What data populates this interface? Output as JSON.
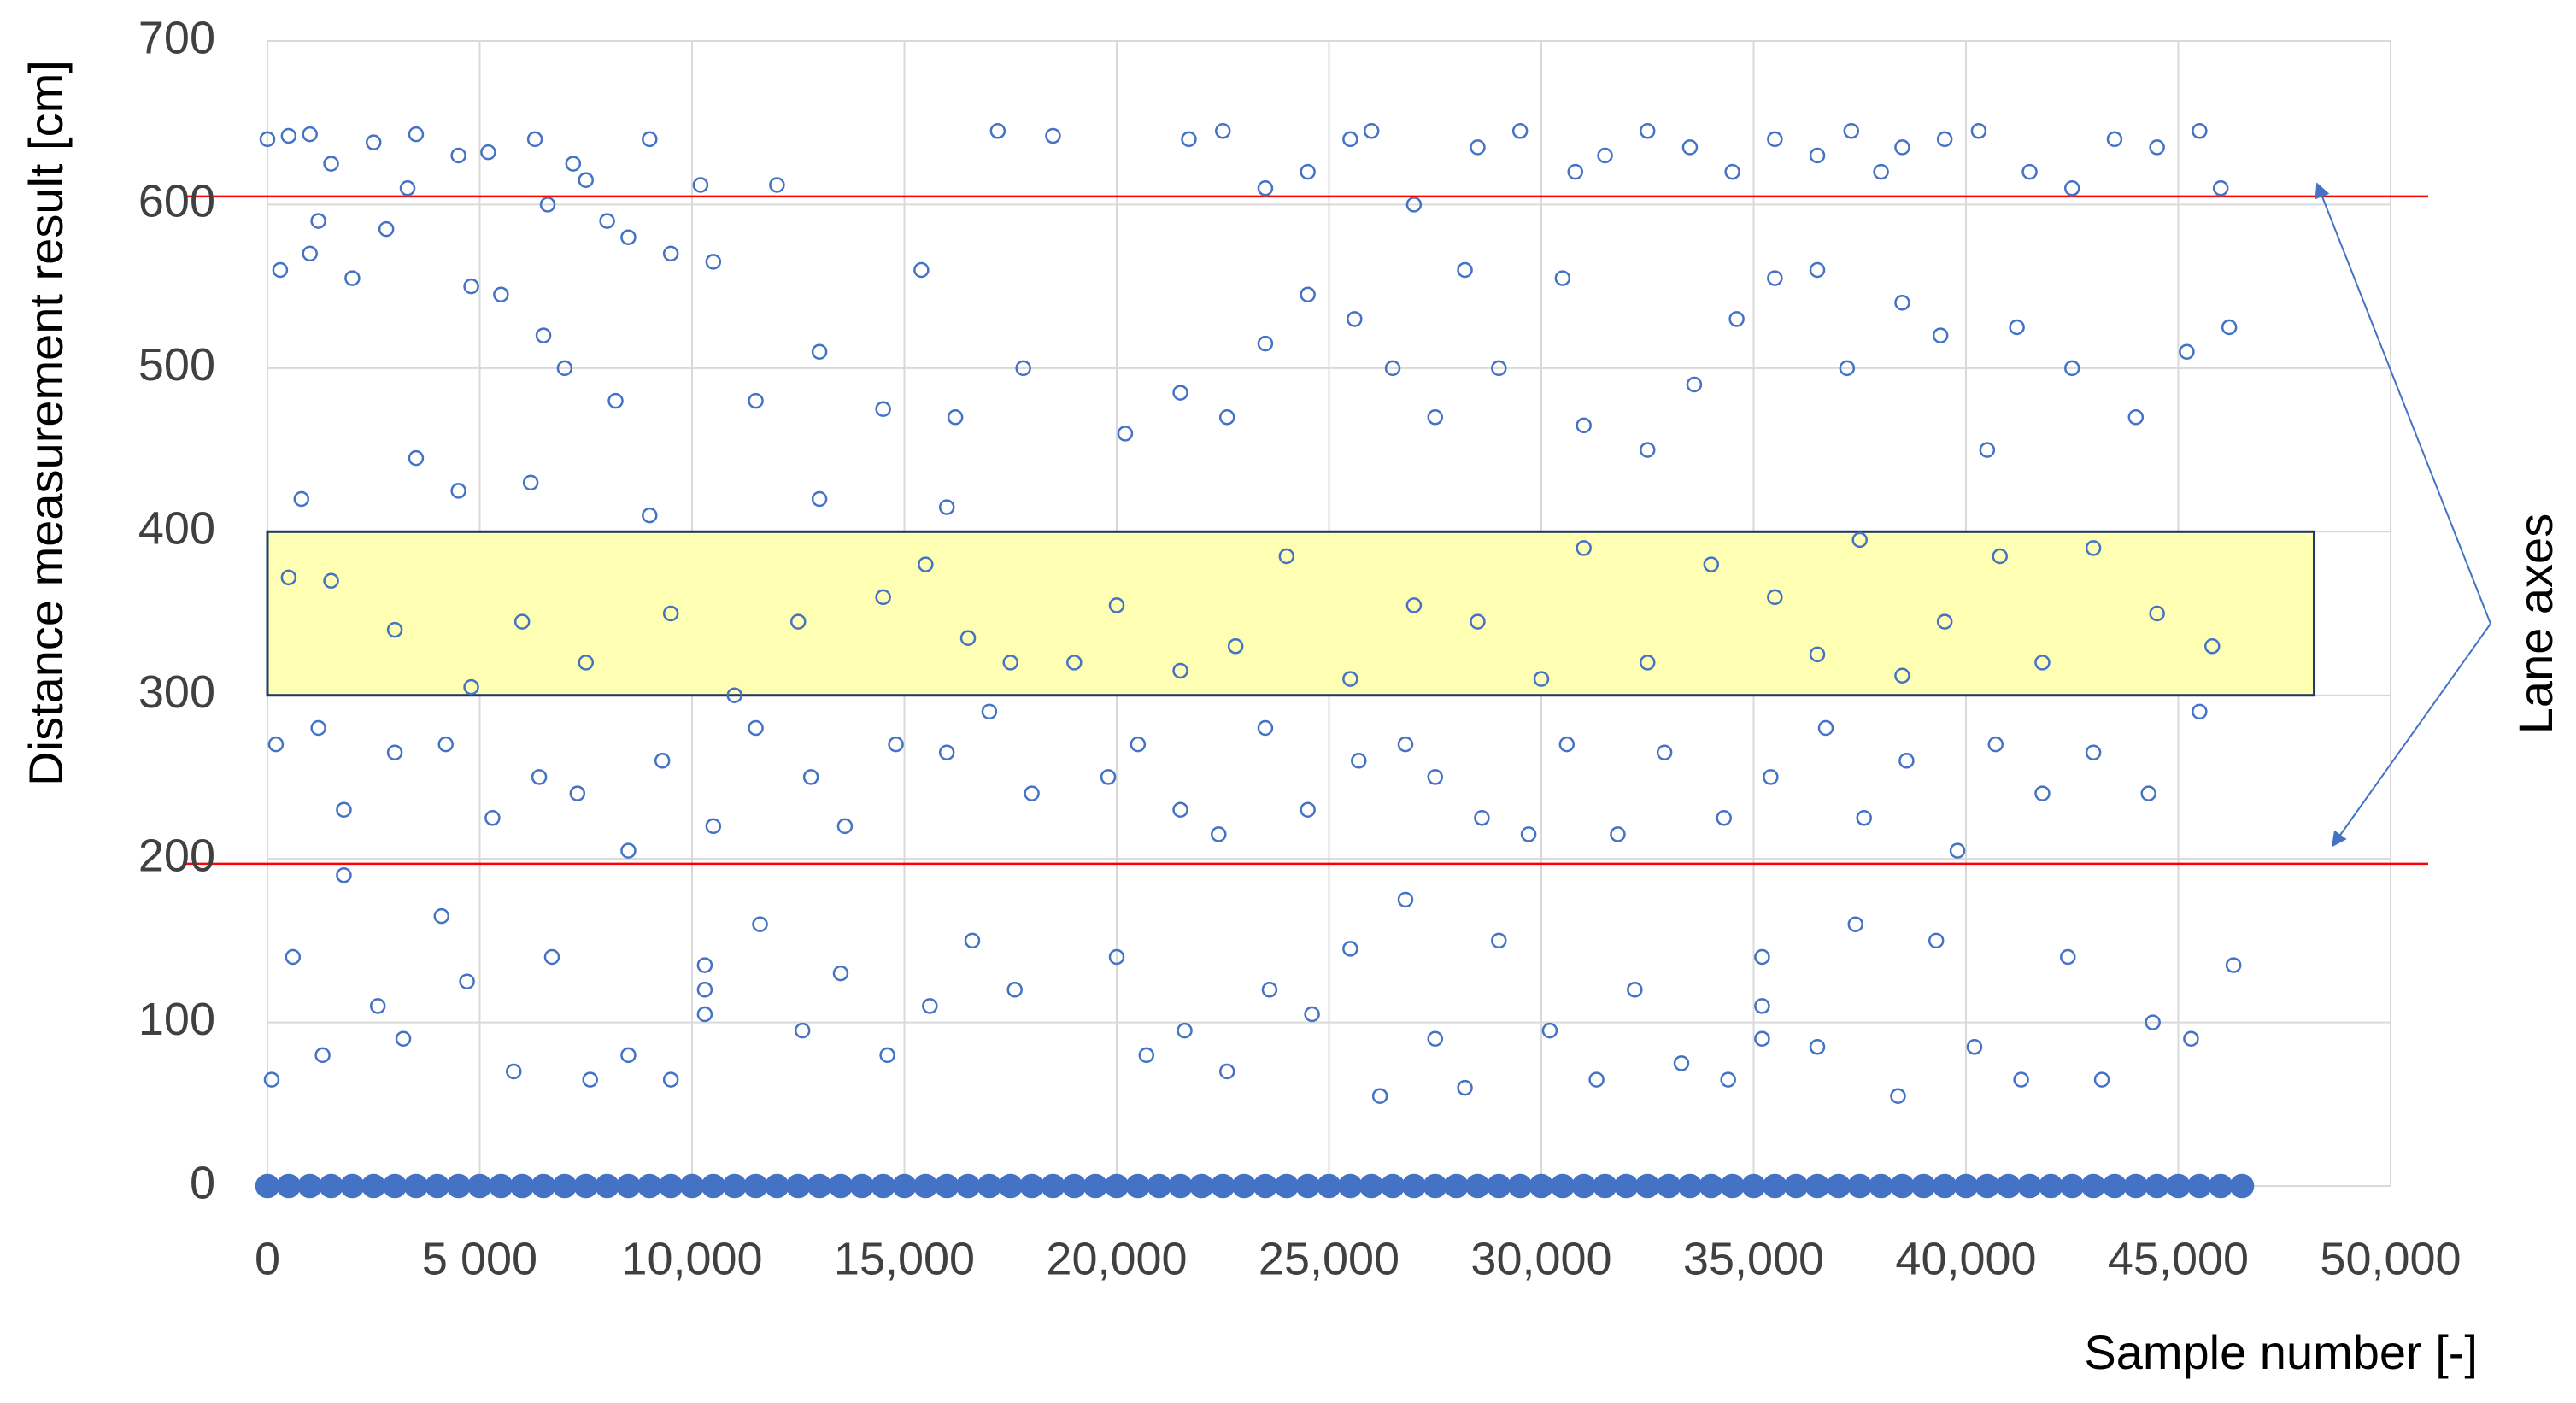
{
  "chart_data": {
    "type": "scatter",
    "x_label": "Sample number [-]",
    "y_label": "Distance measurement result [cm]",
    "xlim": [
      0,
      50000
    ],
    "ylim": [
      0,
      700
    ],
    "xticks": [
      0,
      {
        "value": 5000,
        "label": "5 000"
      },
      {
        "value": 10000,
        "label": "10,000"
      },
      {
        "value": 15000,
        "label": "15,000"
      },
      {
        "value": 20000,
        "label": "20,000"
      },
      {
        "value": 25000,
        "label": "25,000"
      },
      {
        "value": 30000,
        "label": "30,000"
      },
      {
        "value": 35000,
        "label": "35,000"
      },
      {
        "value": 40000,
        "label": "40,000"
      },
      {
        "value": 45000,
        "label": "45,000"
      },
      {
        "value": 50000,
        "label": "50,000"
      }
    ],
    "yticks": [
      0,
      100,
      200,
      300,
      400,
      500,
      600,
      700
    ],
    "grid": true,
    "reference_lines": {
      "color": "#ff0000",
      "values": [
        605,
        197
      ]
    },
    "highlight": {
      "xlim": [
        0,
        48200
      ],
      "ylim": [
        300,
        400
      ],
      "color": "#ffffb3",
      "edge_color": "#1f3864"
    },
    "annotation": "Lane axes",
    "series": [
      {
        "color": "#4472c4",
        "filled": false,
        "x": [
          0,
          500,
          1000,
          1500,
          2500,
          3500,
          4500,
          5200,
          6300,
          7200,
          7500,
          8000,
          9000,
          10200,
          12000,
          17200,
          18500,
          21700,
          22500,
          23500,
          24500,
          25500,
          26000,
          27000,
          28500,
          29500,
          30800,
          31500,
          32500,
          33500,
          34500,
          35500,
          36500,
          37300,
          38000,
          38500,
          39500,
          40300,
          41500,
          42500,
          43500,
          44500,
          45500,
          46000,
          1200,
          2800,
          3300,
          6600,
          8500,
          300,
          1000,
          2000,
          4800,
          5500,
          6500,
          7000,
          8200,
          9500,
          10500,
          11500,
          13000,
          15400,
          16200,
          17800,
          20200,
          21500,
          22600,
          23500,
          24500,
          25600,
          26500,
          27500,
          28200,
          29000,
          30500,
          31000,
          32500,
          33600,
          34600,
          35500,
          36500,
          37200,
          38500,
          39400,
          40500,
          41200,
          42500,
          44000,
          45200,
          46200,
          800,
          3500,
          4500,
          6200,
          9000,
          13000,
          14500,
          16000,
          500,
          1500,
          3000,
          4800,
          6000,
          7500,
          9500,
          11000,
          12500,
          14500,
          15500,
          16500,
          17500,
          19000,
          20000,
          21500,
          22800,
          24000,
          25500,
          27000,
          28500,
          30000,
          31000,
          32500,
          34000,
          35500,
          36500,
          37500,
          38500,
          39500,
          40800,
          41800,
          43000,
          44500,
          45800,
          200,
          1200,
          1800,
          3000,
          4200,
          5300,
          6400,
          7300,
          8500,
          9300,
          10500,
          11500,
          12800,
          13600,
          14800,
          16000,
          17000,
          18000,
          19800,
          20500,
          21500,
          22400,
          23500,
          24500,
          25700,
          26800,
          27500,
          28600,
          29700,
          30600,
          31800,
          32900,
          34300,
          35400,
          36700,
          37600,
          38600,
          39800,
          40700,
          41800,
          43000,
          44300,
          45500,
          100,
          600,
          1300,
          1800,
          2600,
          3200,
          4100,
          4700,
          5800,
          6700,
          7600,
          8500,
          9500,
          10300,
          10300,
          10300,
          11600,
          12600,
          13500,
          14600,
          15600,
          16600,
          17600,
          20000,
          20700,
          21600,
          22600,
          23600,
          24600,
          25500,
          26200,
          26800,
          27500,
          28200,
          29000,
          30200,
          31300,
          32200,
          33300,
          34400,
          35200,
          35200,
          35200,
          36500,
          37400,
          38400,
          39300,
          40200,
          41300,
          42400,
          43200,
          44400,
          45300,
          46300
        ],
        "values": [
          640,
          642,
          643,
          625,
          638,
          643,
          630,
          632,
          640,
          625,
          615,
          590,
          640,
          612,
          612,
          645,
          642,
          640,
          645,
          610,
          620,
          640,
          645,
          600,
          635,
          645,
          620,
          630,
          645,
          635,
          620,
          640,
          630,
          645,
          620,
          635,
          640,
          645,
          620,
          610,
          640,
          635,
          645,
          610,
          590,
          585,
          610,
          600,
          580,
          560,
          570,
          555,
          550,
          545,
          520,
          500,
          480,
          570,
          565,
          480,
          510,
          560,
          470,
          500,
          460,
          485,
          470,
          515,
          545,
          530,
          500,
          470,
          560,
          500,
          555,
          465,
          450,
          490,
          530,
          555,
          560,
          500,
          540,
          520,
          450,
          525,
          500,
          470,
          510,
          525,
          420,
          445,
          425,
          430,
          410,
          420,
          475,
          415,
          372,
          370,
          340,
          305,
          345,
          320,
          350,
          300,
          345,
          360,
          380,
          335,
          320,
          320,
          355,
          315,
          330,
          385,
          310,
          355,
          345,
          310,
          390,
          320,
          380,
          360,
          325,
          395,
          312,
          345,
          385,
          320,
          390,
          350,
          330,
          270,
          280,
          230,
          265,
          270,
          225,
          250,
          240,
          205,
          260,
          220,
          280,
          250,
          220,
          270,
          265,
          290,
          240,
          250,
          270,
          230,
          215,
          280,
          230,
          260,
          270,
          250,
          225,
          215,
          270,
          215,
          265,
          225,
          250,
          280,
          225,
          260,
          205,
          270,
          240,
          265,
          240,
          290,
          65,
          140,
          80,
          190,
          110,
          90,
          165,
          125,
          70,
          140,
          65,
          80,
          65,
          120,
          105,
          135,
          160,
          95,
          130,
          80,
          110,
          150,
          120,
          140,
          80,
          95,
          70,
          120,
          105,
          145,
          55,
          175,
          90,
          60,
          150,
          95,
          65,
          120,
          75,
          65,
          110,
          140,
          90,
          85,
          160,
          55,
          150,
          85,
          65,
          140,
          65,
          100,
          90,
          135
        ]
      },
      {
        "color": "#4472c4",
        "filled": true,
        "x": [
          0,
          500,
          1000,
          1500,
          2000,
          2500,
          3000,
          3500,
          4000,
          4500,
          5000,
          5500,
          6000,
          6500,
          7000,
          7500,
          8000,
          8500,
          9000,
          9500,
          10000,
          10500,
          11000,
          11500,
          12000,
          12500,
          13000,
          13500,
          14000,
          14500,
          15000,
          15500,
          16000,
          16500,
          17000,
          17500,
          18000,
          18500,
          19000,
          19500,
          20000,
          20500,
          21000,
          21500,
          22000,
          22500,
          23000,
          23500,
          24000,
          24500,
          25000,
          25500,
          26000,
          26500,
          27000,
          27500,
          28000,
          28500,
          29000,
          29500,
          30000,
          30500,
          31000,
          31500,
          32000,
          32500,
          33000,
          33500,
          34000,
          34500,
          35000,
          35500,
          36000,
          36500,
          37000,
          37500,
          38000,
          38500,
          39000,
          39500,
          40000,
          40500,
          41000,
          41500,
          42000,
          42500,
          43000,
          43500,
          44000,
          44500,
          45000,
          45500,
          46000,
          46500
        ],
        "values": [
          0,
          0,
          0,
          0,
          0,
          0,
          0,
          0,
          0,
          0,
          0,
          0,
          0,
          0,
          0,
          0,
          0,
          0,
          0,
          0,
          0,
          0,
          0,
          0,
          0,
          0,
          0,
          0,
          0,
          0,
          0,
          0,
          0,
          0,
          0,
          0,
          0,
          0,
          0,
          0,
          0,
          0,
          0,
          0,
          0,
          0,
          0,
          0,
          0,
          0,
          0,
          0,
          0,
          0,
          0,
          0,
          0,
          0,
          0,
          0,
          0,
          0,
          0,
          0,
          0,
          0,
          0,
          0,
          0,
          0,
          0,
          0,
          0,
          0,
          0,
          0,
          0,
          0,
          0,
          0,
          0,
          0,
          0,
          0,
          0,
          0,
          0,
          0,
          0,
          0,
          0,
          0,
          0,
          0
        ]
      }
    ]
  }
}
